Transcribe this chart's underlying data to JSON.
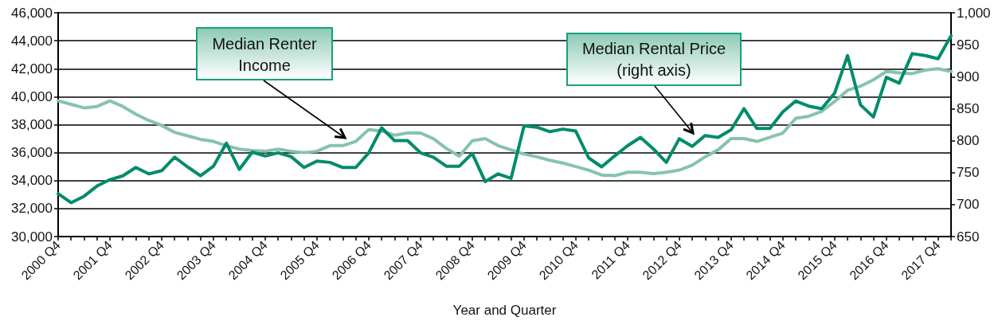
{
  "chart_data": {
    "type": "line",
    "categories": [
      "2000 Q4",
      null,
      null,
      null,
      "2001 Q4",
      null,
      null,
      null,
      "2002 Q4",
      null,
      null,
      null,
      "2003 Q4",
      null,
      null,
      null,
      "2004 Q4",
      null,
      null,
      null,
      "2005 Q4",
      null,
      null,
      null,
      "2006 Q4",
      null,
      null,
      null,
      "2007 Q4",
      null,
      null,
      null,
      "2008 Q4",
      null,
      null,
      null,
      "2009 Q4",
      null,
      null,
      null,
      "2010 Q4",
      null,
      null,
      null,
      "2011 Q4",
      null,
      null,
      null,
      "2012 Q4",
      null,
      null,
      null,
      "2013 Q4",
      null,
      null,
      null,
      "2014 Q4",
      null,
      null,
      null,
      "2015 Q4",
      null,
      null,
      null,
      "2016 Q4",
      null,
      null,
      null,
      "2017 Q4",
      null
    ],
    "series": [
      {
        "color": "#86c3ae",
        "values": [
          39700,
          39450,
          39200,
          39300,
          39700,
          39300,
          38750,
          38300,
          37950,
          37450,
          37200,
          36950,
          36800,
          36500,
          36250,
          36150,
          36100,
          36250,
          36100,
          36000,
          36100,
          36500,
          36500,
          36800,
          37650,
          37550,
          37250,
          37400,
          37400,
          37000,
          36300,
          35750,
          36850,
          37000,
          36500,
          36200,
          35900,
          35700,
          35450,
          35250,
          35000,
          34750,
          34400,
          34350,
          34600,
          34600,
          34500,
          34600,
          34750,
          35100,
          35700,
          36200,
          37000,
          37000,
          36800,
          37100,
          37400,
          38450,
          38600,
          38950,
          39650,
          40450,
          40750,
          41200,
          41800,
          41700,
          41650,
          41900,
          42000,
          41800
        ]
      },
      {
        "color": "#008c6c",
        "axis": "y2",
        "values": [
          717,
          703,
          713,
          729,
          739,
          745,
          758,
          748,
          753,
          774,
          759,
          745,
          760,
          796,
          755,
          782,
          776,
          781,
          775,
          758,
          768,
          766,
          758,
          758,
          781,
          820,
          800,
          800,
          781,
          774,
          760,
          760,
          780,
          736,
          748,
          741,
          823,
          821,
          814,
          818,
          815,
          773,
          759,
          776,
          792,
          805,
          787,
          766,
          803,
          791,
          808,
          805,
          817,
          850,
          819,
          819,
          845,
          862,
          854,
          850,
          874,
          933,
          856,
          837,
          899,
          890,
          936,
          933,
          928,
          964
        ]
      }
    ],
    "xlabel": "Year and Quarter",
    "ylim": [
      30000,
      46000
    ],
    "yticks": [
      {
        "value": 30000,
        "label": "30,000"
      },
      {
        "value": 32000,
        "label": "32,000"
      },
      {
        "value": 34000,
        "label": "34,000"
      },
      {
        "value": 36000,
        "label": "36,000"
      },
      {
        "value": 38000,
        "label": "38,000"
      },
      {
        "value": 40000,
        "label": "40,000"
      },
      {
        "value": 42000,
        "label": "42,000"
      },
      {
        "value": 44000,
        "label": "44,000"
      },
      {
        "value": 46000,
        "label": "46,000"
      }
    ],
    "y2lim": [
      650,
      1000
    ],
    "y2ticks": [
      650,
      700,
      750,
      800,
      850,
      900,
      950,
      {
        "value": 1000,
        "label": "1,000"
      }
    ],
    "annotations": [
      "Median Renter Income",
      "Median Rental Price (right axis)"
    ],
    "grid": "y",
    "marker": "none",
    "line_style": "solid"
  }
}
